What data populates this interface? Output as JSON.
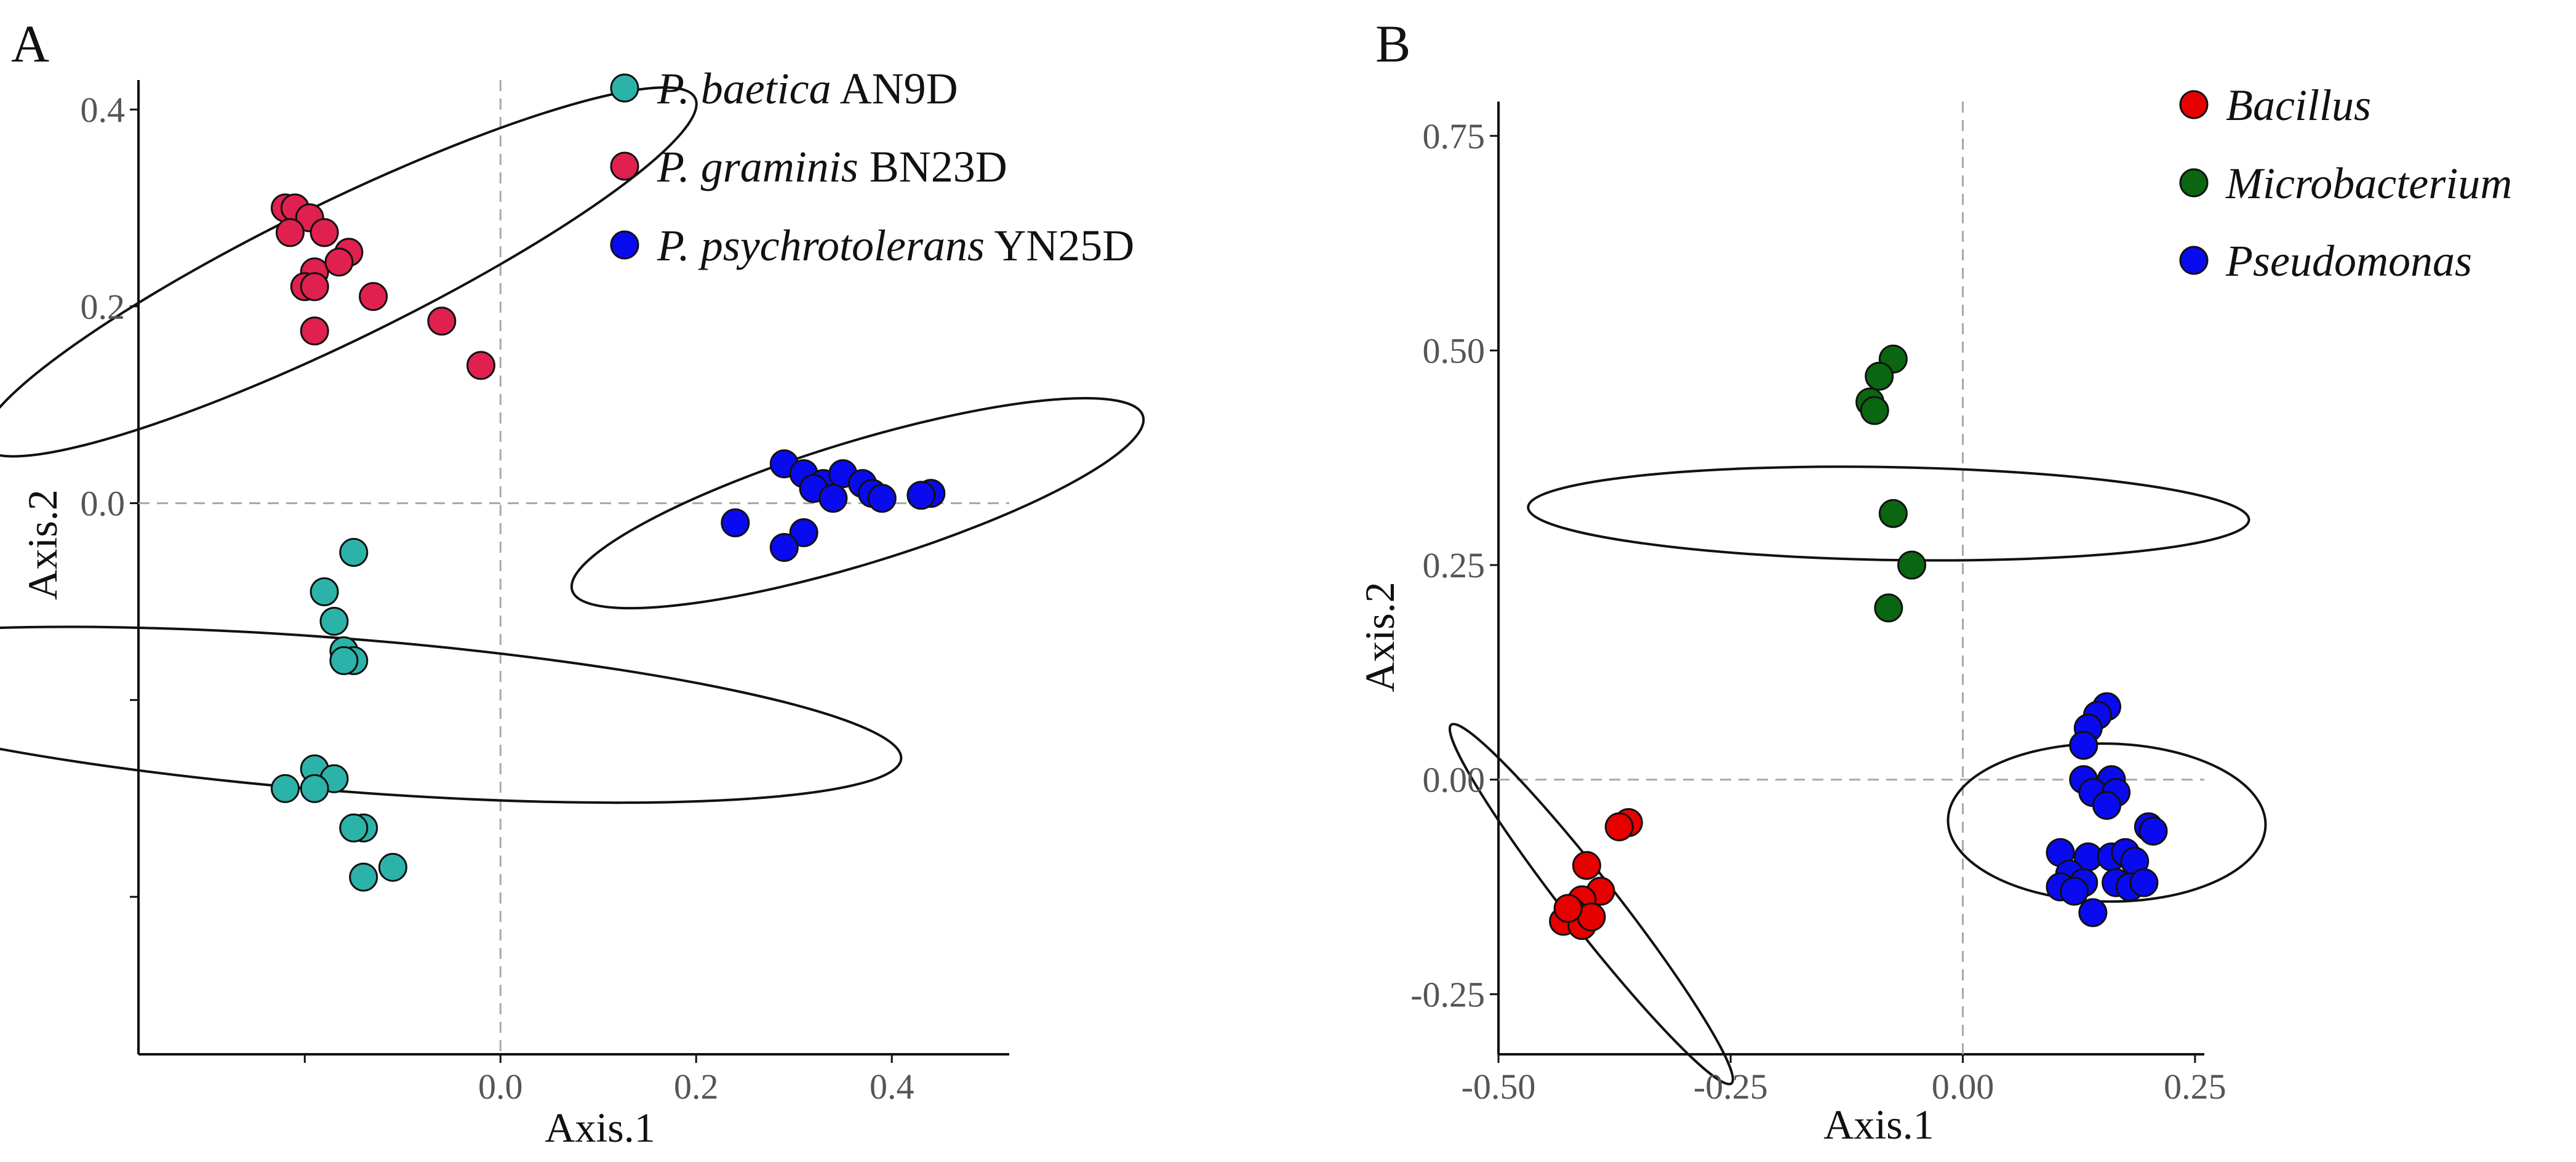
{
  "chart_data": [
    {
      "panel_label": "A",
      "type": "scatter",
      "xlabel": "Axis.1",
      "ylabel": "Axis.2",
      "xlim": [
        -0.37,
        0.52
      ],
      "ylim": [
        -0.56,
        0.43
      ],
      "x_ticks": [
        {
          "value": -0.2,
          "label": ""
        },
        {
          "value": 0.0,
          "label": "0.0"
        },
        {
          "value": 0.2,
          "label": "0.2"
        },
        {
          "value": 0.4,
          "label": "0.4"
        }
      ],
      "y_ticks": [
        {
          "value": -0.4,
          "label": ""
        },
        {
          "value": -0.2,
          "label": ""
        },
        {
          "value": 0.0,
          "label": "0.0"
        },
        {
          "value": 0.2,
          "label": "0.2"
        },
        {
          "value": 0.4,
          "label": "0.4"
        }
      ],
      "reference_lines": {
        "x": 0,
        "y": 0
      },
      "legend_position": "top-right",
      "series": [
        {
          "italic_name": "P. baetica",
          "strain": "AN9D",
          "color": "#2bb3a9",
          "points": [
            [
              -0.15,
              -0.05
            ],
            [
              -0.18,
              -0.09
            ],
            [
              -0.17,
              -0.12
            ],
            [
              -0.16,
              -0.15
            ],
            [
              -0.15,
              -0.16
            ],
            [
              -0.16,
              -0.16
            ],
            [
              -0.19,
              -0.27
            ],
            [
              -0.17,
              -0.28
            ],
            [
              -0.22,
              -0.29
            ],
            [
              -0.19,
              -0.29
            ],
            [
              -0.14,
              -0.33
            ],
            [
              -0.15,
              -0.33
            ],
            [
              -0.11,
              -0.37
            ],
            [
              -0.14,
              -0.38
            ]
          ],
          "ellipse": {
            "center": [
              -0.162,
              -0.215
            ],
            "radii": [
              0.078,
              0.57
            ],
            "angle_deg": 85.5
          }
        },
        {
          "italic_name": "P. graminis",
          "strain": "BN23D",
          "color": "#e0204f",
          "points": [
            [
              -0.22,
              0.3
            ],
            [
              -0.21,
              0.3
            ],
            [
              -0.195,
              0.29
            ],
            [
              -0.18,
              0.275
            ],
            [
              -0.215,
              0.275
            ],
            [
              -0.19,
              0.235
            ],
            [
              -0.155,
              0.255
            ],
            [
              -0.165,
              0.245
            ],
            [
              -0.2,
              0.22
            ],
            [
              -0.19,
              0.22
            ],
            [
              -0.13,
              0.21
            ],
            [
              -0.06,
              0.185
            ],
            [
              -0.19,
              0.175
            ],
            [
              -0.02,
              0.14
            ]
          ],
          "ellipse": {
            "center": [
              -0.165,
              0.235
            ],
            "radii": [
              0.405,
              0.07
            ],
            "angle_deg": 26
          }
        },
        {
          "italic_name": "P. psychrotolerans",
          "strain": "YN25D",
          "color": "#0a0af0",
          "points": [
            [
              0.29,
              0.04
            ],
            [
              0.31,
              0.03
            ],
            [
              0.33,
              0.02
            ],
            [
              0.35,
              0.03
            ],
            [
              0.32,
              0.015
            ],
            [
              0.37,
              0.02
            ],
            [
              0.38,
              0.01
            ],
            [
              0.39,
              0.005
            ],
            [
              0.34,
              0.005
            ],
            [
              0.44,
              0.01
            ],
            [
              0.43,
              0.008
            ],
            [
              0.24,
              -0.02
            ],
            [
              0.31,
              -0.03
            ],
            [
              0.29,
              -0.045
            ]
          ],
          "ellipse": {
            "center": [
              0.365,
              0.0
            ],
            "radii": [
              0.305,
              0.062
            ],
            "angle_deg": 17
          }
        }
      ]
    },
    {
      "panel_label": "B",
      "type": "scatter",
      "xlabel": "Axis.1",
      "ylabel": "Axis.2",
      "xlim": [
        -0.5,
        0.26
      ],
      "ylim": [
        -0.32,
        0.79
      ],
      "x_ticks": [
        {
          "value": -0.5,
          "label": "-0.50"
        },
        {
          "value": -0.25,
          "label": "-0.25"
        },
        {
          "value": 0.0,
          "label": "0.00"
        },
        {
          "value": 0.25,
          "label": "0.25"
        }
      ],
      "y_ticks": [
        {
          "value": -0.25,
          "label": "-0.25"
        },
        {
          "value": 0.0,
          "label": "0.00"
        },
        {
          "value": 0.25,
          "label": "0.25"
        },
        {
          "value": 0.5,
          "label": "0.50"
        },
        {
          "value": 0.75,
          "label": "0.75"
        }
      ],
      "reference_lines": {
        "x": 0,
        "y": 0
      },
      "legend_position": "top-right",
      "series": [
        {
          "italic_name": "Bacillus",
          "color": "#e60000",
          "points": [
            [
              -0.36,
              -0.05
            ],
            [
              -0.37,
              -0.055
            ],
            [
              -0.405,
              -0.1
            ],
            [
              -0.39,
              -0.13
            ],
            [
              -0.41,
              -0.14
            ],
            [
              -0.42,
              -0.155
            ],
            [
              -0.43,
              -0.165
            ],
            [
              -0.41,
              -0.17
            ],
            [
              -0.4,
              -0.16
            ],
            [
              -0.425,
              -0.15
            ]
          ],
          "ellipse": {
            "center": [
              -0.4,
              -0.145
            ],
            "radii": [
              0.245,
              0.03
            ],
            "angle_deg": -52
          }
        },
        {
          "italic_name": "Microbacterium",
          "color": "#0a6610",
          "points": [
            [
              -0.075,
              0.49
            ],
            [
              -0.09,
              0.47
            ],
            [
              -0.1,
              0.44
            ],
            [
              -0.095,
              0.43
            ],
            [
              -0.075,
              0.31
            ],
            [
              -0.055,
              0.25
            ],
            [
              -0.08,
              0.2
            ]
          ],
          "ellipse": {
            "center": [
              -0.08,
              0.31
            ],
            "radii": [
              0.05,
              0.42
            ],
            "angle_deg": 89
          }
        },
        {
          "italic_name": "Pseudomonas",
          "color": "#0a0af0",
          "points": [
            [
              0.155,
              0.085
            ],
            [
              0.145,
              0.075
            ],
            [
              0.135,
              0.06
            ],
            [
              0.13,
              0.04
            ],
            [
              0.13,
              0.0
            ],
            [
              0.16,
              0.0
            ],
            [
              0.14,
              -0.015
            ],
            [
              0.165,
              -0.015
            ],
            [
              0.155,
              -0.03
            ],
            [
              0.105,
              -0.085
            ],
            [
              0.135,
              -0.09
            ],
            [
              0.16,
              -0.09
            ],
            [
              0.175,
              -0.085
            ],
            [
              0.185,
              -0.095
            ],
            [
              0.2,
              -0.055
            ],
            [
              0.205,
              -0.06
            ],
            [
              0.115,
              -0.11
            ],
            [
              0.13,
              -0.12
            ],
            [
              0.165,
              -0.12
            ],
            [
              0.18,
              -0.125
            ],
            [
              0.195,
              -0.12
            ],
            [
              0.105,
              -0.125
            ],
            [
              0.12,
              -0.13
            ],
            [
              0.14,
              -0.155
            ]
          ],
          "ellipse": {
            "center": [
              0.155,
              -0.05
            ],
            "radii": [
              0.085,
              0.185
            ],
            "angle_deg": 89
          }
        }
      ]
    }
  ]
}
